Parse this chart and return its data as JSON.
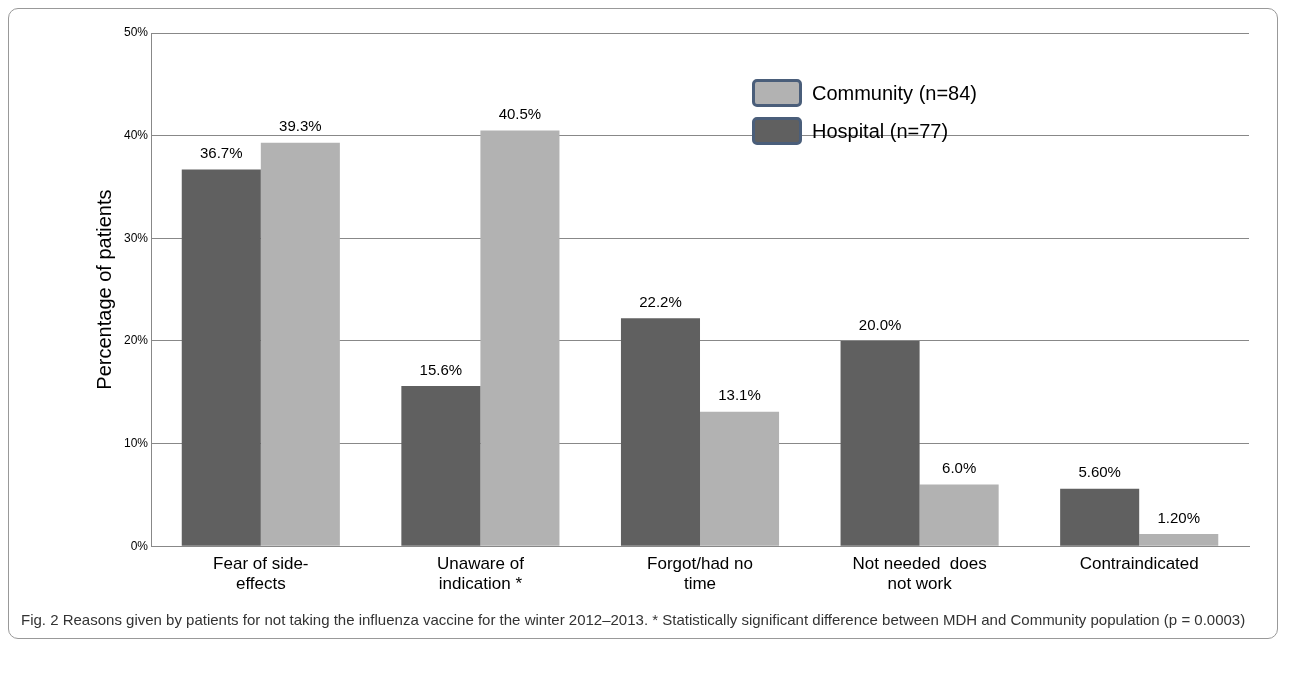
{
  "chart_data": {
    "type": "bar",
    "ylabel": "Percentage of patients",
    "categories": [
      "Fear of side-effects",
      "Unaware of indication *",
      "Forgot/had no time",
      "Not needed  does not work",
      "Contraindicated"
    ],
    "series": [
      {
        "name": "Hospital (n=77)",
        "color": "#606060",
        "values": [
          36.7,
          15.6,
          22.2,
          20.0,
          5.6
        ],
        "value_labels": [
          "36.7%",
          "15.6%",
          "22.2%",
          "20.0%",
          "5.60%"
        ]
      },
      {
        "name": "Community (n=84)",
        "color": "#b2b2b2",
        "values": [
          39.3,
          40.5,
          13.1,
          6.0,
          1.2
        ],
        "value_labels": [
          "39.3%",
          "40.5%",
          "13.1%",
          "6.0%",
          "1.20%"
        ]
      }
    ],
    "ylim": [
      0,
      50
    ],
    "yticks": [
      {
        "value": 0,
        "label": "0%"
      },
      {
        "value": 10,
        "label": "10%"
      },
      {
        "value": 20,
        "label": "20%"
      },
      {
        "value": 30,
        "label": "30%"
      },
      {
        "value": 40,
        "label": "40%"
      },
      {
        "value": 50,
        "label": "50%"
      }
    ],
    "grid": "y",
    "legend": "top right",
    "annotations": [
      "Fig. 2 Reasons given by patients for not taking the influenza vaccine for the winter 2012–2013. * Statistically significant difference between MDH and Community population (p = 0.0003)"
    ]
  }
}
